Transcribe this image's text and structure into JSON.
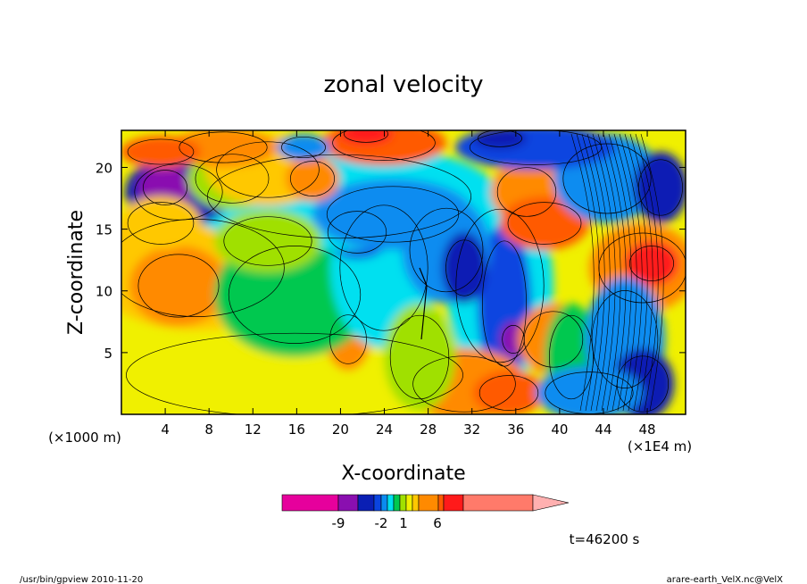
{
  "chart_data": {
    "type": "heatmap",
    "title": "zonal velocity",
    "xlabel": "X-coordinate",
    "ylabel": "Z-coordinate",
    "x_unit_left": "(×1000 m)",
    "x_unit_right": "(×1E4 m)",
    "x_ticks": [
      "4",
      "8",
      "12",
      "16",
      "20",
      "24",
      "28",
      "32",
      "36",
      "40",
      "44",
      "48"
    ],
    "x_tick_values": [
      4,
      8,
      12,
      16,
      20,
      24,
      28,
      32,
      36,
      40,
      44,
      48
    ],
    "y_ticks": [
      "5",
      "10",
      "15",
      "20"
    ],
    "y_tick_values": [
      5,
      10,
      15,
      20
    ],
    "xlim": [
      0,
      51.5
    ],
    "ylim": [
      0,
      23
    ],
    "colorbar": {
      "colors": [
        "#e6009c",
        "#8a0fb0",
        "#0a1fb4",
        "#0a44e0",
        "#0a8cf0",
        "#00e0f0",
        "#00c850",
        "#a0e000",
        "#f0f000",
        "#ffc800",
        "#ff8a00",
        "#ff5a00",
        "#ff1a1a",
        "#ff7a6a",
        "#ffb0b0"
      ],
      "tick_labels": [
        "-9",
        "-2",
        "1",
        "6"
      ],
      "tick_values": [
        -9,
        -2,
        1,
        6
      ]
    },
    "annotation_time": "t=46200 s"
  },
  "footer": {
    "left": "/usr/bin/gpview   2010-11-20",
    "right": "arare-earth_VelX.nc@VelX"
  }
}
